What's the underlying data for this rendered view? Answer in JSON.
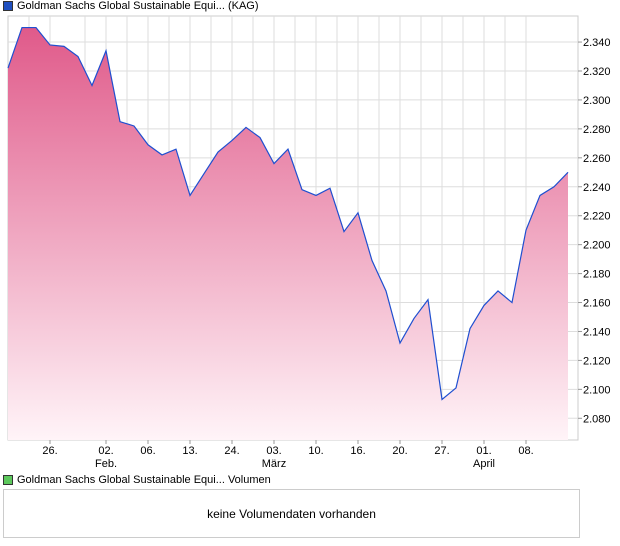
{
  "chart_data": {
    "type": "area",
    "title": "Goldman Sachs Global Sustainable Equi... (KAG)",
    "legend_color": "#1f4fbf",
    "line_color": "#1f4fd0",
    "fill_top": "#e05a8a",
    "ylim": [
      2.065,
      2.358
    ],
    "yticks": [
      2.08,
      2.1,
      2.12,
      2.14,
      2.16,
      2.18,
      2.2,
      2.22,
      2.24,
      2.26,
      2.28,
      2.3,
      2.32,
      2.34
    ],
    "ytick_labels": [
      "2.080",
      "2.100",
      "2.120",
      "2.140",
      "2.160",
      "2.180",
      "2.200",
      "2.220",
      "2.240",
      "2.260",
      "2.280",
      "2.300",
      "2.320",
      "2.340"
    ],
    "xticks": [
      {
        "i": 3,
        "label": "26.",
        "sub": ""
      },
      {
        "i": 7,
        "label": "02.",
        "sub": "Feb."
      },
      {
        "i": 10,
        "label": "06.",
        "sub": ""
      },
      {
        "i": 13,
        "label": "13.",
        "sub": ""
      },
      {
        "i": 16,
        "label": "24.",
        "sub": ""
      },
      {
        "i": 19,
        "label": "03.",
        "sub": "März"
      },
      {
        "i": 22,
        "label": "10.",
        "sub": ""
      },
      {
        "i": 25,
        "label": "16.",
        "sub": ""
      },
      {
        "i": 28,
        "label": "20.",
        "sub": ""
      },
      {
        "i": 31,
        "label": "27.",
        "sub": ""
      },
      {
        "i": 34,
        "label": "01.",
        "sub": "April"
      },
      {
        "i": 37,
        "label": "08.",
        "sub": ""
      }
    ],
    "values": [
      2.322,
      2.35,
      2.35,
      2.338,
      2.337,
      2.33,
      2.31,
      2.334,
      2.285,
      2.282,
      2.269,
      2.262,
      2.266,
      2.234,
      2.249,
      2.264,
      2.272,
      2.281,
      2.274,
      2.256,
      2.266,
      2.238,
      2.234,
      2.239,
      2.209,
      2.222,
      2.189,
      2.168,
      2.132,
      2.149,
      2.162,
      2.093,
      2.101,
      2.142,
      2.158,
      2.168,
      2.16,
      2.21,
      2.234,
      2.24,
      2.25
    ],
    "grid": true
  },
  "volume": {
    "title": "Goldman Sachs Global Sustainable Equi... Volumen",
    "legend_color": "#5cc85c",
    "message": "keine Volumendaten vorhanden"
  }
}
